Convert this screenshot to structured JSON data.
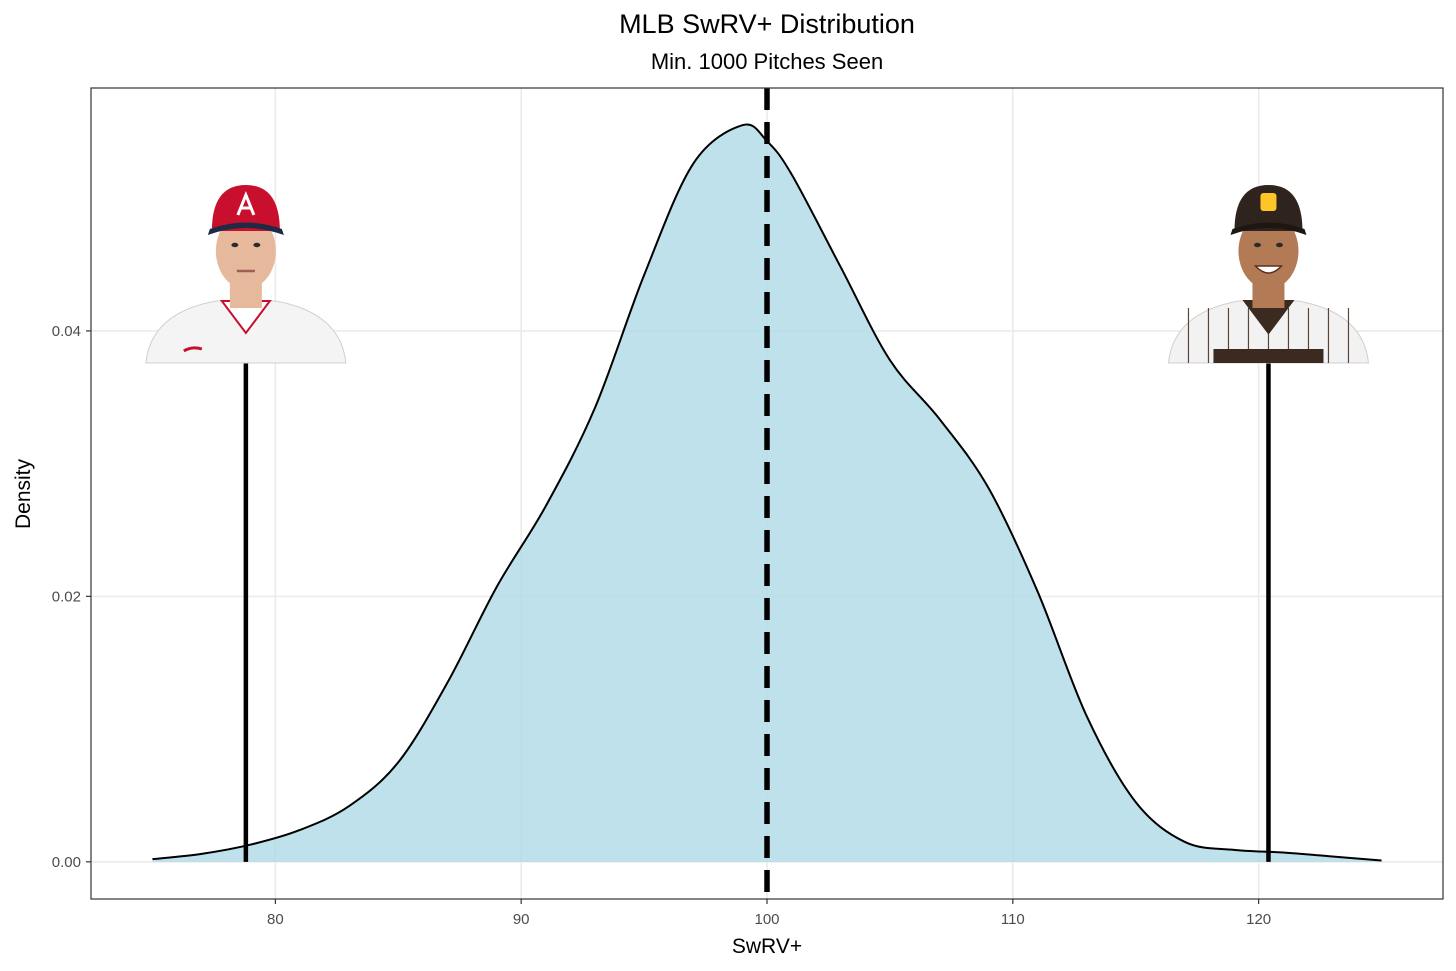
{
  "chart_data": {
    "type": "area",
    "title": "MLB SwRV+ Distribution",
    "subtitle": "Min. 1000 Pitches Seen",
    "xlabel": "SwRV+",
    "ylabel": "Density",
    "xlim": [
      72.5,
      127.5
    ],
    "ylim": [
      -0.0028,
      0.0583
    ],
    "xticks": [
      80,
      90,
      100,
      110,
      120
    ],
    "yticks": [
      0.0,
      0.02,
      0.04
    ],
    "xtick_labels": [
      "80",
      "90",
      "100",
      "110",
      "120"
    ],
    "ytick_labels": [
      "0.00",
      "0.02",
      "0.04"
    ],
    "grid": true,
    "legend": "none",
    "fill_color": "#add8e6",
    "curve_color": "#000000",
    "mean_line": {
      "x": 100,
      "style": "dashed"
    },
    "series": [
      {
        "x": [
          75,
          77,
          79,
          81,
          83,
          85,
          87,
          89,
          91,
          93,
          95,
          97,
          99,
          100,
          101,
          103,
          105,
          107,
          109,
          111,
          113,
          115,
          117,
          119,
          121,
          123,
          125
        ],
        "values": [
          0.0002,
          0.0006,
          0.0013,
          0.0024,
          0.0042,
          0.0075,
          0.0135,
          0.0207,
          0.0268,
          0.0342,
          0.0442,
          0.0526,
          0.0555,
          0.0543,
          0.0518,
          0.0448,
          0.0378,
          0.0334,
          0.0282,
          0.0204,
          0.011,
          0.0045,
          0.0015,
          0.0009,
          0.0007,
          0.0004,
          0.0001
        ]
      }
    ],
    "markers": [
      {
        "x": 78.8,
        "player": "left",
        "team_color": "#c8102e"
      },
      {
        "x": 120.4,
        "player": "right",
        "team_color": "#2f241d"
      }
    ]
  }
}
